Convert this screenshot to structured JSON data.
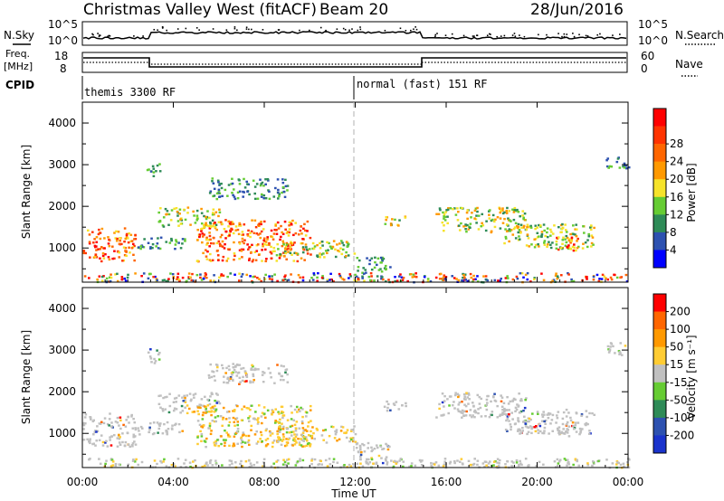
{
  "header": {
    "title": "Christmas Valley West (fitACF)",
    "beam": "Beam 20",
    "date": "28/Jun/2016"
  },
  "nsky_panel": {
    "left_label": "N.Sky",
    "right_label": "N.Search",
    "left_ticks": [
      "10^5",
      "10^0"
    ],
    "right_ticks": [
      "10^5",
      "10^0"
    ]
  },
  "freq_panel": {
    "left_label_1": "Freq.",
    "left_label_2": "[MHz]",
    "right_label": "Nave",
    "left_ticks": [
      "18",
      "8"
    ],
    "right_ticks": [
      "60",
      "0"
    ]
  },
  "cpid_panel": {
    "label": "CPID",
    "segments": [
      "themis 3300 RF",
      "normal (fast) 151 RF"
    ]
  },
  "x_axis": {
    "title": "Time UT",
    "ticks": [
      "00:00",
      "04:00",
      "08:00",
      "12:00",
      "16:00",
      "20:00",
      "00:00"
    ]
  },
  "chart_data": [
    {
      "type": "heatmap",
      "panel": "power",
      "xlabel": "Time UT",
      "ylabel": "Slant Range [km]",
      "xlim": [
        0,
        24
      ],
      "ylim": [
        180,
        4500
      ],
      "yticks": [
        "1000",
        "2000",
        "3000",
        "4000"
      ],
      "colorbar": {
        "label": "Power [dB]",
        "ticks": [
          "4",
          "8",
          "12",
          "16",
          "20",
          "24",
          "28"
        ],
        "colors": [
          "#0000ff",
          "#2d51b0",
          "#2e8b57",
          "#66cc33",
          "#f6e32a",
          "#ff9900",
          "#ff6600",
          "#ff3300",
          "#ff0000"
        ]
      }
    },
    {
      "type": "heatmap",
      "panel": "velocity",
      "xlabel": "Time UT",
      "ylabel": "Slant Range [km]",
      "xlim": [
        0,
        24
      ],
      "ylim": [
        180,
        4500
      ],
      "yticks": [
        "1000",
        "2000",
        "3000",
        "4000"
      ],
      "colorbar": {
        "label": "Velocity [m s⁻¹]",
        "ticks": [
          "200",
          "100",
          "50",
          "15",
          "-15",
          "-50",
          "-100",
          "-200"
        ],
        "colors": [
          "#1a33cc",
          "#2d51b0",
          "#2e8b57",
          "#66cc33",
          "#c0c0c0",
          "#ffcc33",
          "#ff9900",
          "#ff6600",
          "#ff0000"
        ]
      }
    }
  ]
}
